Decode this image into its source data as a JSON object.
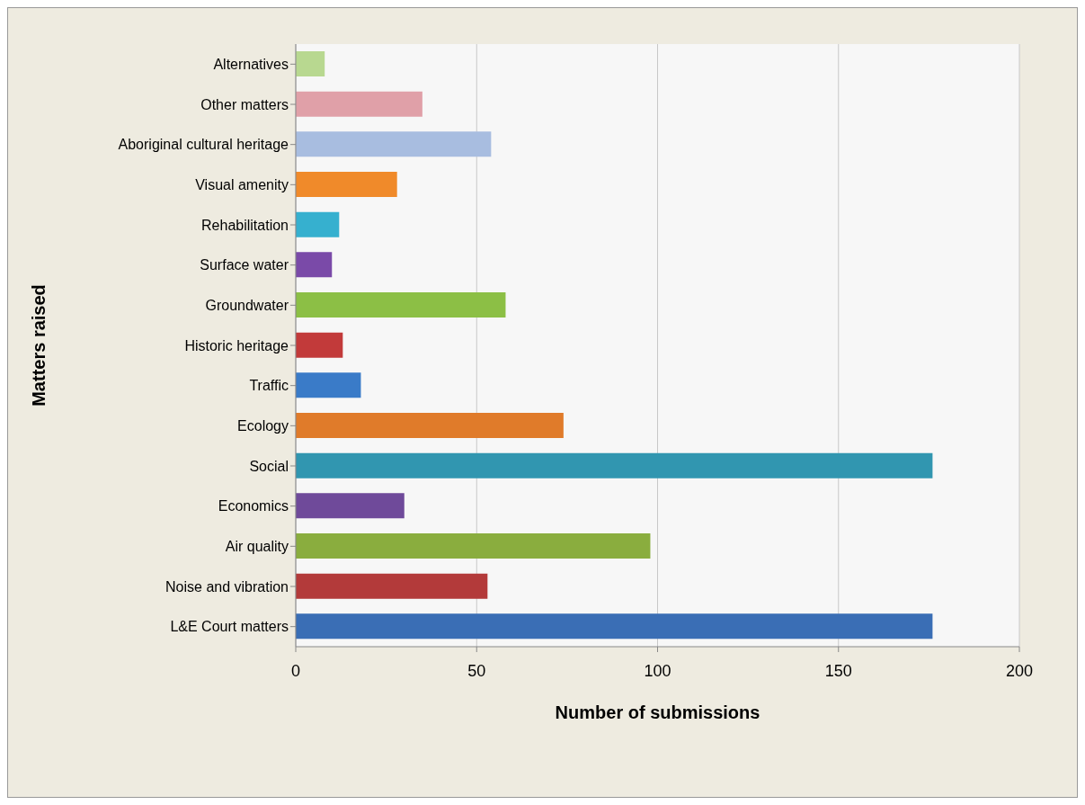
{
  "chart_data": {
    "type": "bar",
    "orientation": "horizontal",
    "xlabel": "Number of submissions",
    "ylabel": "Matters raised",
    "categories": [
      "Alternatives",
      "Other matters",
      "Aboriginal cultural heritage",
      "Visual amenity",
      "Rehabilitation",
      "Surface water",
      "Groundwater ",
      "Historic heritage",
      "Traffic",
      "Ecology",
      "Social",
      "Economics",
      "Air quality",
      "Noise and vibration",
      "L&E Court matters"
    ],
    "values": [
      8,
      35,
      54,
      28,
      12,
      10,
      58,
      13,
      18,
      74,
      176,
      30,
      98,
      53,
      176
    ],
    "colors": [
      "#b8d890",
      "#e0a0a8",
      "#a8bde0",
      "#f08a2a",
      "#36b0cf",
      "#7a4aa8",
      "#8cbf45",
      "#c23a3a",
      "#3a7bc8",
      "#e07b2a",
      "#3196b0",
      "#6f4a9a",
      "#8aad3e",
      "#b33a3a",
      "#3a6eb5"
    ],
    "xlim": [
      0,
      200
    ],
    "xticks": [
      0,
      50,
      100,
      150,
      200
    ],
    "grid": "x"
  }
}
